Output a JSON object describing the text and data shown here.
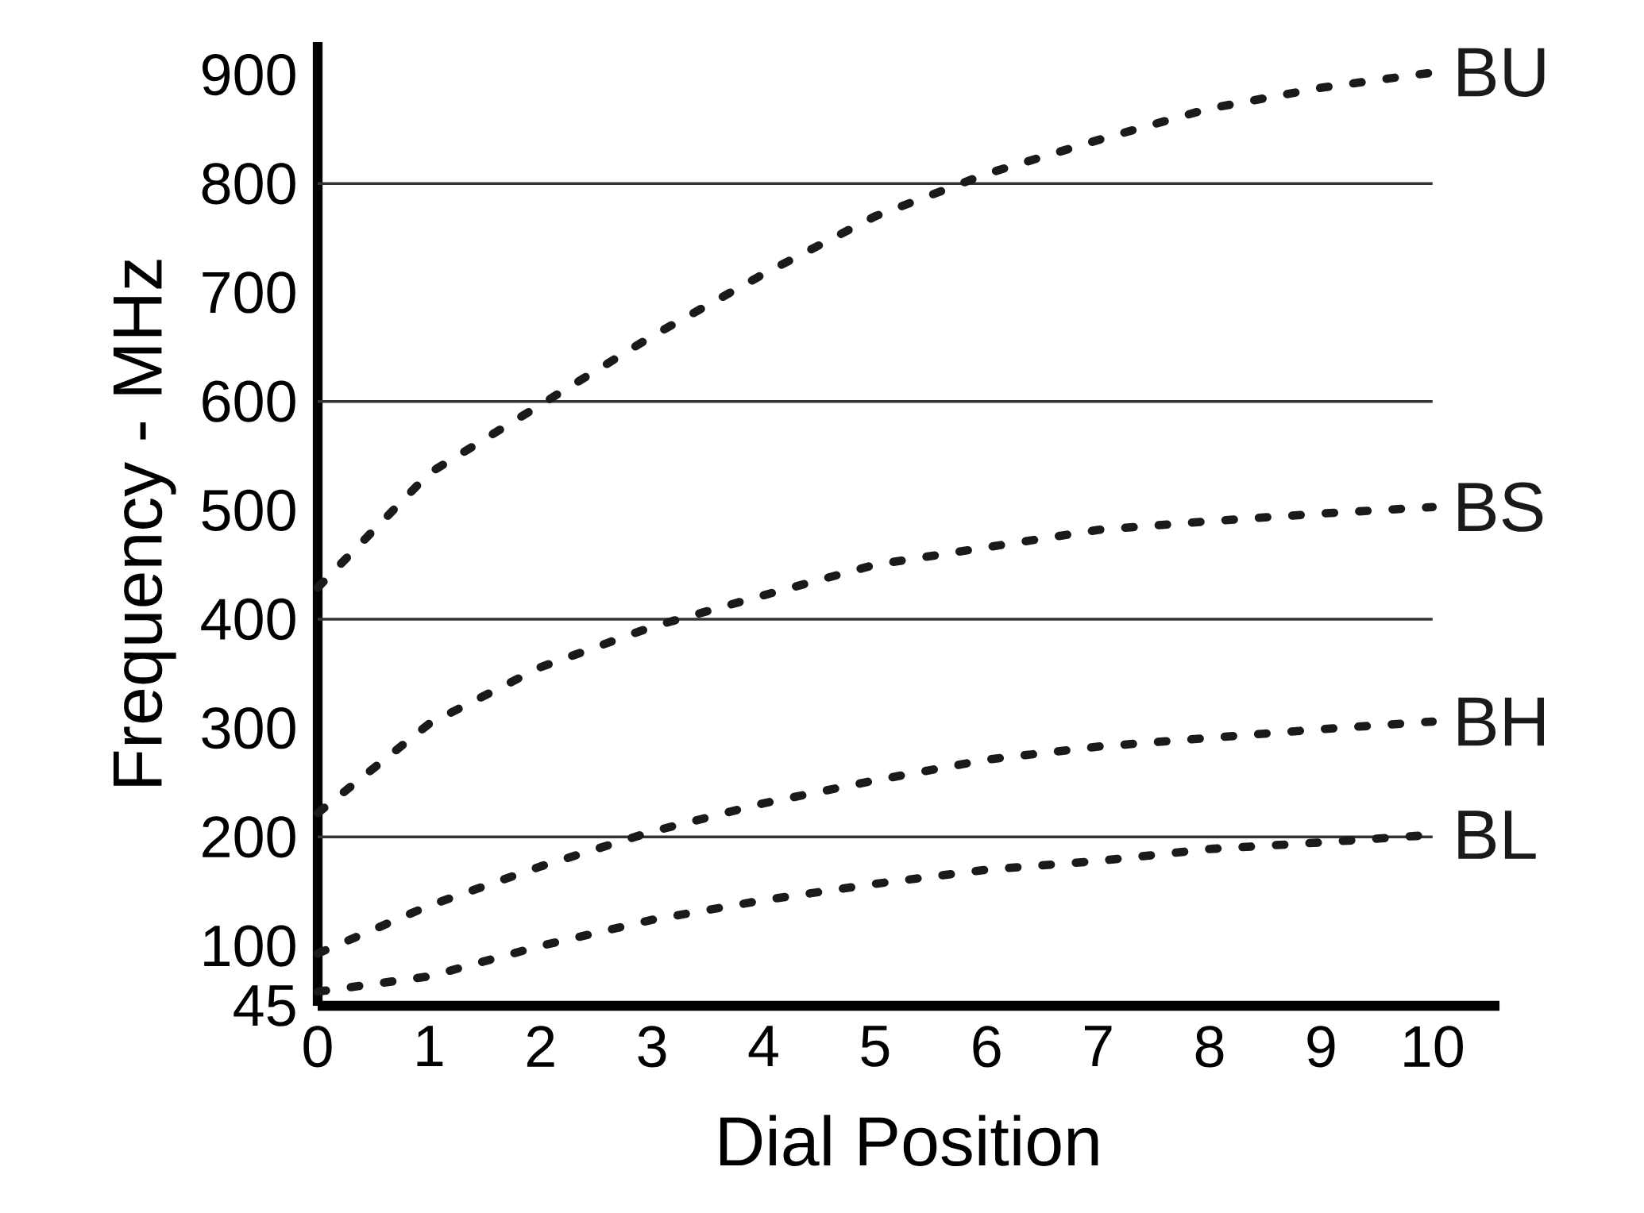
{
  "chart_data": {
    "type": "line",
    "xlabel": "Dial Position",
    "ylabel": "Frequency - MHz",
    "x": [
      0,
      1,
      2,
      3,
      4,
      5,
      6,
      7,
      8,
      9,
      10
    ],
    "series": [
      {
        "name": "BU",
        "color": "#1a1a1a",
        "values": [
          429,
          534,
          597,
          660,
          717,
          770,
          809,
          840,
          869,
          888,
          902
        ]
      },
      {
        "name": "BS",
        "color": "#1a1a1a",
        "values": [
          222,
          304,
          356,
          393,
          422,
          450,
          466,
          482,
          490,
          497,
          503
        ]
      },
      {
        "name": "BH",
        "color": "#1a1a1a",
        "values": [
          93,
          137,
          173,
          205,
          231,
          252,
          271,
          283,
          291,
          299,
          306
        ]
      },
      {
        "name": "BL",
        "color": "#1a1a1a",
        "values": [
          58,
          72,
          100,
          124,
          142,
          157,
          170,
          178,
          189,
          195,
          202
        ]
      }
    ],
    "xlim": [
      0,
      10.6
    ],
    "ylim": [
      45,
      930
    ],
    "xticks": [
      0,
      1,
      2,
      3,
      4,
      5,
      6,
      7,
      8,
      9,
      10
    ],
    "yticks": [
      45,
      100,
      200,
      300,
      400,
      500,
      600,
      700,
      800,
      900
    ],
    "ref_lines": [
      {
        "axis": "y",
        "value": 200,
        "color": "#333333"
      },
      {
        "axis": "y",
        "value": 400,
        "color": "#333333"
      },
      {
        "axis": "y",
        "value": 600,
        "color": "#333333"
      },
      {
        "axis": "y",
        "value": 800,
        "color": "#333333"
      }
    ],
    "line_style": "dotted",
    "marker": "none",
    "grid": false
  }
}
